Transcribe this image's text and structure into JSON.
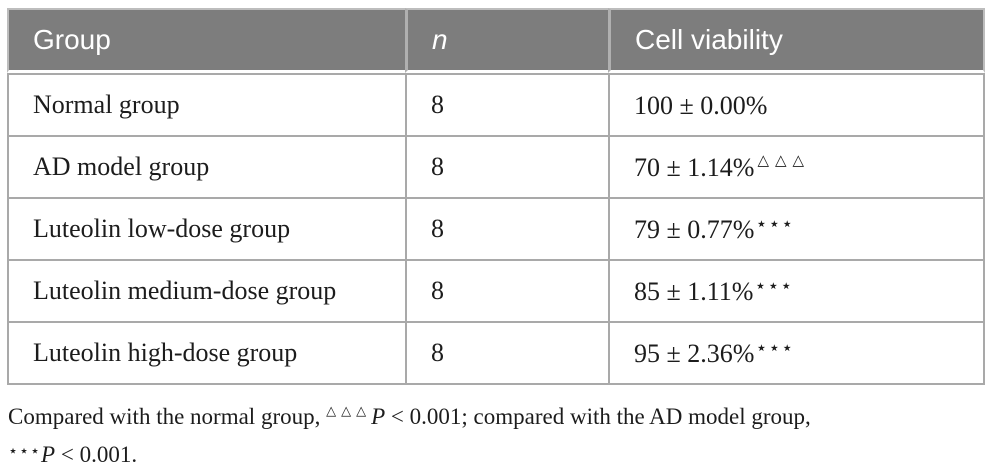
{
  "colors": {
    "header_bg": "#7d7d7d",
    "header_text": "#ffffff",
    "body_text": "#1c1c1c",
    "border": "#a9a9a9",
    "header_divider": "#b0b0b0"
  },
  "table": {
    "headers": [
      "Group",
      "n",
      "Cell viability"
    ],
    "rows": [
      {
        "group": "Normal group",
        "n": "8",
        "viability": "100 ± 0.00%",
        "marker": ""
      },
      {
        "group": "AD model group",
        "n": "8",
        "viability": "70 ± 1.14%",
        "marker": "△△△"
      },
      {
        "group": "Luteolin low-dose group",
        "n": "8",
        "viability": "79 ± 0.77%",
        "marker": "⋆⋆⋆"
      },
      {
        "group": "Luteolin medium-dose group",
        "n": "8",
        "viability": "85 ± 1.11%",
        "marker": "⋆⋆⋆"
      },
      {
        "group": "Luteolin high-dose group",
        "n": "8",
        "viability": "95 ± 2.36%",
        "marker": "⋆⋆⋆"
      }
    ]
  },
  "footnote": {
    "line1_text1": "Compared with the normal group, ",
    "line1_marker": "△△△",
    "line1_p": "P",
    "line1_text2": " < 0.001; compared with the AD model group,",
    "line2_marker": "⋆⋆⋆",
    "line2_p": "P",
    "line2_text": " < 0.001."
  }
}
